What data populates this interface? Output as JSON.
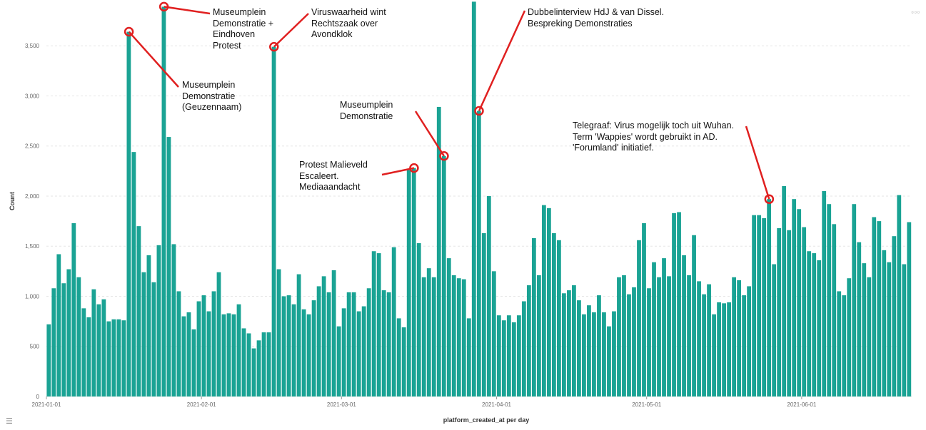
{
  "chart_data": {
    "type": "bar",
    "x_start": "2021-01-01",
    "xlabel": "platform_created_at per day",
    "ylabel": "Count",
    "ylim": [
      0,
      3900
    ],
    "yticks": [
      0,
      500,
      1000,
      1500,
      2000,
      2500,
      3000,
      3500
    ],
    "ytick_labels": [
      "0",
      "500",
      "1,000",
      "1,500",
      "2,000",
      "2,500",
      "3,000",
      "3,500"
    ],
    "xticks": [
      "2021-01-01",
      "2021-02-01",
      "2021-03-01",
      "2021-04-01",
      "2021-05-01",
      "2021-06-01"
    ],
    "grid": true,
    "bar_color": "#1aa394",
    "values": [
      720,
      1080,
      1420,
      1130,
      1270,
      1730,
      1190,
      880,
      790,
      1070,
      920,
      970,
      750,
      770,
      770,
      760,
      3640,
      2440,
      1700,
      1240,
      1410,
      1140,
      1510,
      3890,
      2590,
      1520,
      1050,
      800,
      840,
      670,
      950,
      1010,
      850,
      1050,
      1240,
      820,
      830,
      820,
      920,
      680,
      630,
      480,
      560,
      640,
      640,
      3490,
      1270,
      1000,
      1010,
      920,
      1220,
      870,
      820,
      960,
      1100,
      1200,
      1040,
      1260,
      700,
      880,
      1040,
      1040,
      850,
      900,
      1080,
      1450,
      1430,
      1060,
      1040,
      1490,
      780,
      690,
      2260,
      2280,
      1530,
      1190,
      1280,
      1190,
      2890,
      2400,
      1380,
      1210,
      1180,
      1170,
      780,
      3940,
      2850,
      1630,
      2000,
      1250,
      810,
      760,
      810,
      740,
      810,
      950,
      1110,
      1580,
      1210,
      1910,
      1880,
      1630,
      1560,
      1030,
      1060,
      1110,
      960,
      820,
      910,
      840,
      1010,
      840,
      700,
      850,
      1190,
      1210,
      1020,
      1090,
      1560,
      1730,
      1080,
      1340,
      1190,
      1380,
      1200,
      1830,
      1840,
      1410,
      1210,
      1610,
      1150,
      1020,
      1120,
      820,
      940,
      930,
      940,
      1190,
      1160,
      1010,
      1100,
      1810,
      1810,
      1780,
      1970,
      1320,
      1680,
      2100,
      1660,
      1970,
      1870,
      1690,
      1450,
      1430,
      1360,
      2050,
      1920,
      1720,
      1050,
      1010,
      1180,
      1920,
      1540,
      1330,
      1190,
      1790,
      1750,
      1460,
      1340,
      1600,
      2010,
      1320,
      1740
    ],
    "annotations": [
      {
        "index": 16,
        "lines": [
          "Museumplein",
          "Demonstratie",
          "(Geuzennaam)"
        ]
      },
      {
        "index": 23,
        "lines": [
          "Museumplein",
          "Demonstratie +",
          "Eindhoven",
          "Protest"
        ]
      },
      {
        "index": 45,
        "lines": [
          "Viruswaarheid wint",
          "Rechtszaak over",
          "Avondklok"
        ]
      },
      {
        "index": 73,
        "lines": [
          "Protest Malieveld",
          "Escaleert.",
          "Mediaaandacht"
        ]
      },
      {
        "index": 79,
        "lines": [
          "Museumplein",
          "Demonstratie"
        ]
      },
      {
        "index": 86,
        "lines": [
          "Dubbelinterview HdJ & van Dissel.",
          "Bespreking Demonstraties"
        ]
      },
      {
        "index": 144,
        "lines": [
          "Telegraaf: Virus mogelijk toch uit Wuhan.",
          "Term 'Wappies' wordt gebruikt in AD.",
          "'Forumland' initiatief."
        ]
      }
    ],
    "annotation_color": "#e02020"
  },
  "toolbar": {
    "menu_icon": "list-icon",
    "corner_icon": "more-icon"
  }
}
